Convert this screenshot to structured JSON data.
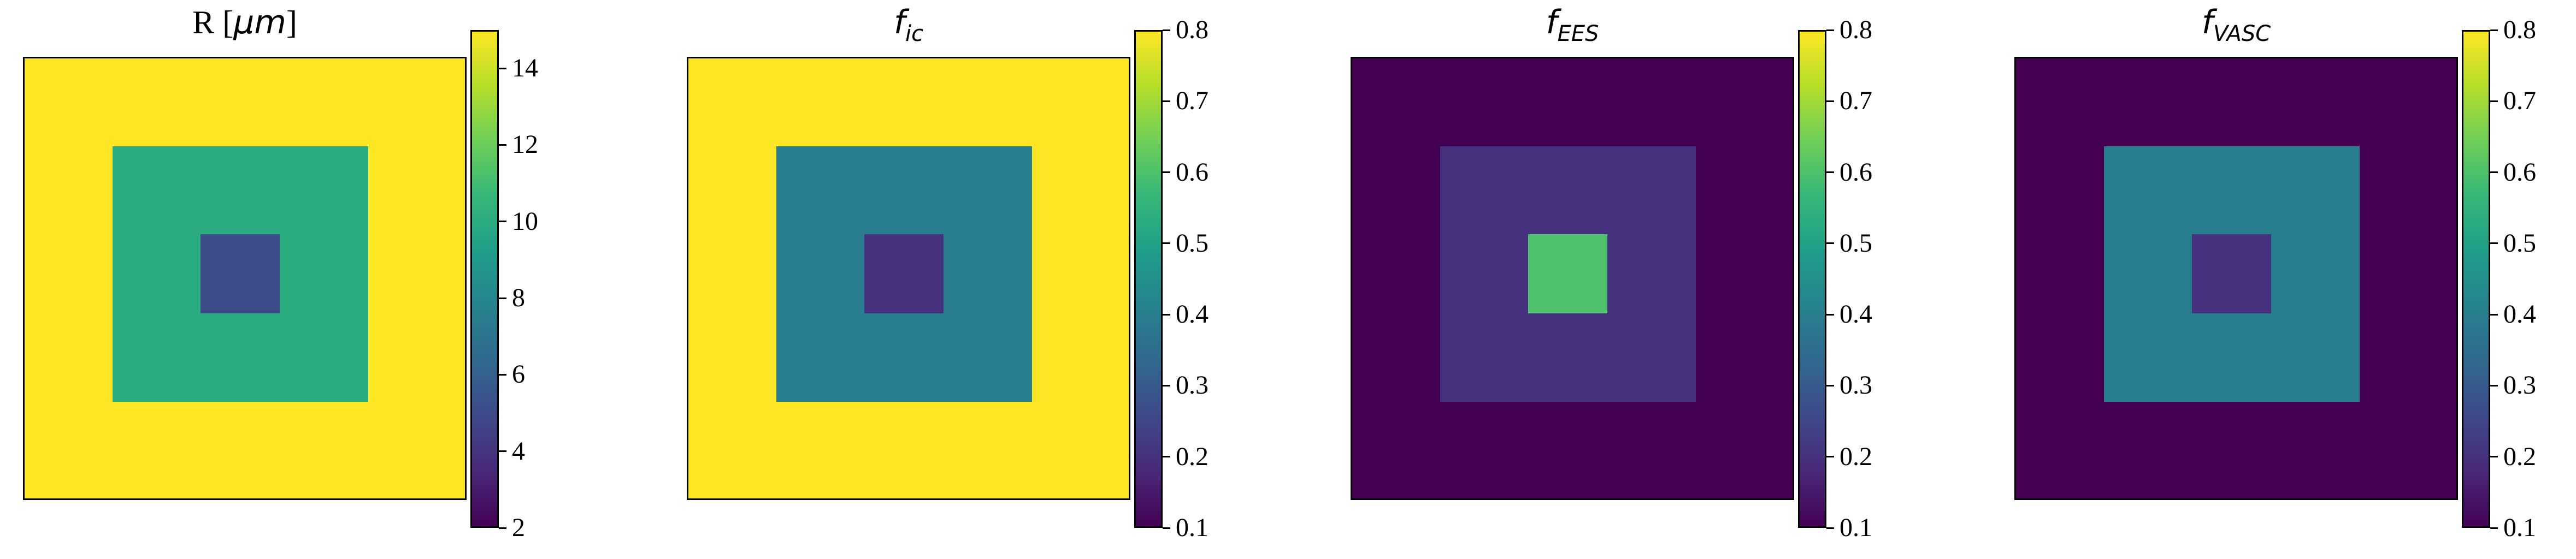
{
  "chart_data": [
    {
      "type": "heatmap",
      "title": "R [μm]",
      "title_parts": {
        "main": "R [",
        "unit": "μm",
        "close": "]"
      },
      "grid": false,
      "regions": {
        "outer": 15,
        "middle": 10,
        "inner": 5
      },
      "colorbar": {
        "range": [
          2,
          15
        ],
        "ticks": [
          2,
          4,
          6,
          8,
          10,
          12,
          14
        ],
        "tick_labels": [
          "2",
          "4",
          "6",
          "8",
          "10",
          "12",
          "14"
        ]
      }
    },
    {
      "type": "heatmap",
      "title": "f_ic",
      "title_parts": {
        "main": "f",
        "sub": "ic"
      },
      "grid": false,
      "regions": {
        "outer": 0.8,
        "middle": 0.4,
        "inner": 0.2
      },
      "colorbar": {
        "range": [
          0.1,
          0.8
        ],
        "ticks": [
          0.1,
          0.2,
          0.3,
          0.4,
          0.5,
          0.6,
          0.7,
          0.8
        ],
        "tick_labels": [
          "0.1",
          "0.2",
          "0.3",
          "0.4",
          "0.5",
          "0.6",
          "0.7",
          "0.8"
        ]
      }
    },
    {
      "type": "heatmap",
      "title": "f_EES",
      "title_parts": {
        "main": "f",
        "sub": "EES"
      },
      "grid": false,
      "regions": {
        "outer": 0.1,
        "middle": 0.2,
        "inner": 0.6
      },
      "colorbar": {
        "range": [
          0.1,
          0.8
        ],
        "ticks": [
          0.1,
          0.2,
          0.3,
          0.4,
          0.5,
          0.6,
          0.7,
          0.8
        ],
        "tick_labels": [
          "0.1",
          "0.2",
          "0.3",
          "0.4",
          "0.5",
          "0.6",
          "0.7",
          "0.8"
        ]
      }
    },
    {
      "type": "heatmap",
      "title": "f_VASC",
      "title_parts": {
        "main": "f",
        "sub": "VASC"
      },
      "grid": false,
      "regions": {
        "outer": 0.1,
        "middle": 0.4,
        "inner": 0.2
      },
      "colorbar": {
        "range": [
          0.1,
          0.8
        ],
        "ticks": [
          0.1,
          0.2,
          0.3,
          0.4,
          0.5,
          0.6,
          0.7,
          0.8
        ],
        "tick_labels": [
          "0.1",
          "0.2",
          "0.3",
          "0.4",
          "0.5",
          "0.6",
          "0.7",
          "0.8"
        ]
      }
    }
  ],
  "colormap": "viridis"
}
